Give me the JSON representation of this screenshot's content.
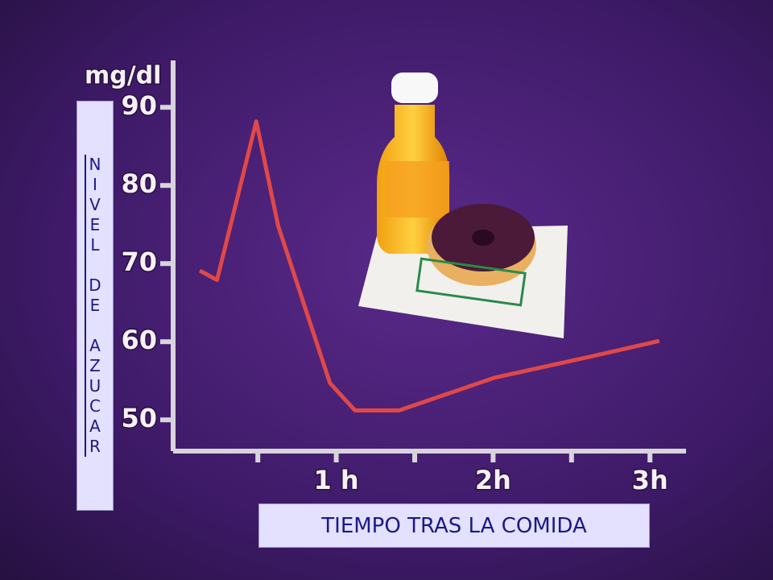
{
  "chart_data": {
    "type": "line",
    "y_axis_label": "mg/dl",
    "ylabel": "NIVEL DE AZUCAR",
    "xlabel": "TIEMPO TRAS LA COMIDA",
    "x": [
      0.13,
      0.24,
      0.49,
      0.63,
      0.96,
      1.12,
      1.4,
      2.01,
      2.6,
      3.06
    ],
    "values": [
      69.1,
      67.9,
      88.2,
      74.8,
      54.7,
      51.2,
      51.2,
      55.4,
      58.0,
      60.1
    ],
    "color": "#e04848",
    "xlim": [
      -0.04,
      3.23
    ],
    "ylim": [
      46,
      96
    ],
    "yticks": [
      50,
      60,
      70,
      80,
      90
    ],
    "xticks": [
      {
        "value": 1,
        "label": "1 h"
      },
      {
        "value": 2,
        "label": "2h"
      },
      {
        "value": 3,
        "label": "3h"
      }
    ],
    "xminorticks": [
      0.5,
      1.5,
      2.5
    ]
  }
}
